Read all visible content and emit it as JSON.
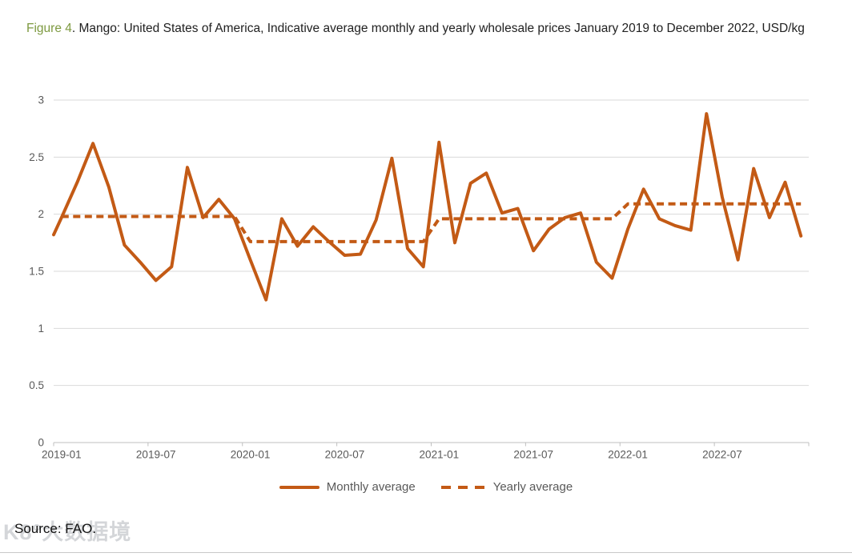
{
  "title": {
    "figure_label": "Figure 4",
    "text": ". Mango: United States of America, Indicative average monthly and yearly wholesale prices January 2019 to December 2022, USD/kg"
  },
  "source": "Source: FAO.",
  "watermark": "K8°大数据境",
  "colors": {
    "line": "#C35A15",
    "grid": "#D9D9D9",
    "axis": "#BFBFBF",
    "tick_label": "#595959",
    "figure_label_green": "#7E9A41",
    "legend_text": "#595959"
  },
  "legend": [
    {
      "label": "Monthly average",
      "style": "solid"
    },
    {
      "label": "Yearly average",
      "style": "dashed"
    }
  ],
  "chart_data": {
    "type": "line",
    "title": "Figure 4. Mango: United States of America, Indicative average monthly and yearly wholesale prices January 2019 to December 2022, USD/kg",
    "xlabel": "",
    "ylabel": "USD/kg",
    "ylim": [
      0,
      3
    ],
    "y_ticks": [
      0,
      0.5,
      1,
      1.5,
      2,
      2.5,
      3
    ],
    "x_tick_labels": [
      "2019-01",
      "2019-07",
      "2020-01",
      "2020-07",
      "2021-01",
      "2021-07",
      "2022-01",
      "2022-07"
    ],
    "grid": "horizontal",
    "legend_position": "bottom",
    "months": [
      "2019-01",
      "2019-02",
      "2019-03",
      "2019-04",
      "2019-05",
      "2019-06",
      "2019-07",
      "2019-08",
      "2019-09",
      "2019-10",
      "2019-11",
      "2019-12",
      "2020-01",
      "2020-02",
      "2020-03",
      "2020-04",
      "2020-05",
      "2020-06",
      "2020-07",
      "2020-08",
      "2020-09",
      "2020-10",
      "2020-11",
      "2020-12",
      "2021-01",
      "2021-02",
      "2021-03",
      "2021-04",
      "2021-05",
      "2021-06",
      "2021-07",
      "2021-08",
      "2021-09",
      "2021-10",
      "2021-11",
      "2021-12",
      "2022-01",
      "2022-02",
      "2022-03",
      "2022-04",
      "2022-05",
      "2022-06",
      "2022-07",
      "2022-08",
      "2022-09",
      "2022-10",
      "2022-11",
      "2022-12"
    ],
    "series": [
      {
        "name": "Monthly average",
        "style": "solid",
        "left_edge_value": 1.82,
        "values": [
          1.97,
          2.28,
          2.62,
          2.24,
          1.73,
          1.58,
          1.42,
          1.54,
          2.41,
          1.97,
          2.13,
          1.96,
          1.6,
          1.25,
          1.96,
          1.72,
          1.89,
          1.76,
          1.64,
          1.65,
          1.95,
          2.49,
          1.7,
          1.54,
          2.63,
          1.75,
          2.27,
          2.36,
          2.01,
          2.05,
          1.68,
          1.87,
          1.97,
          2.01,
          1.58,
          1.44,
          1.87,
          2.22,
          1.96,
          1.9,
          1.86,
          2.88,
          2.15,
          1.6,
          2.4,
          1.97,
          2.28,
          1.81
        ]
      },
      {
        "name": "Yearly average",
        "style": "dashed",
        "years": [
          "2019",
          "2020",
          "2021",
          "2022"
        ],
        "yearly_averages": [
          1.98,
          1.76,
          1.96,
          2.09
        ]
      }
    ]
  }
}
